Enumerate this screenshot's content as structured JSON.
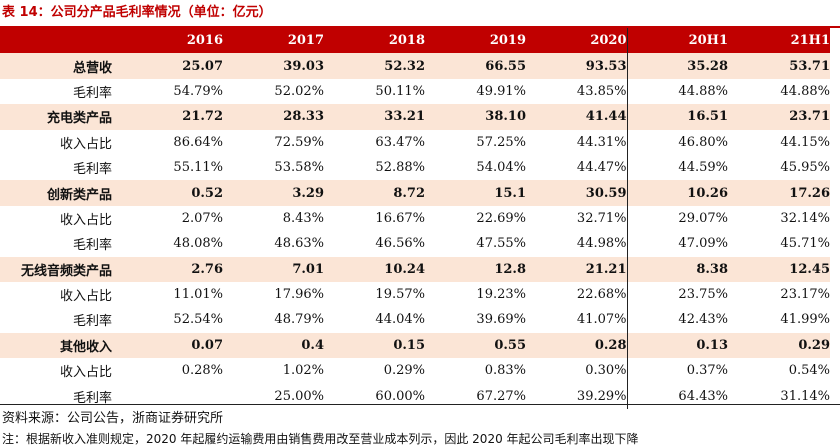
{
  "title": "表 14：公司分产品毛利率情况（单位：亿元）",
  "header": [
    "",
    "2016",
    "2017",
    "2018",
    "2019",
    "2020",
    "20H1",
    "21H1"
  ],
  "rows": [
    {
      "label": "总营收",
      "type": "main",
      "values": [
        "25.07",
        "39.03",
        "52.32",
        "66.55",
        "93.53",
        "35.28",
        "53.71"
      ]
    },
    {
      "label": "毛利率",
      "type": "sub",
      "values": [
        "54.79%",
        "52.02%",
        "50.11%",
        "49.91%",
        "43.85%",
        "44.88%",
        "44.88%"
      ]
    },
    {
      "label": "充电类产品",
      "type": "main",
      "values": [
        "21.72",
        "28.33",
        "33.21",
        "38.10",
        "41.44",
        "16.51",
        "23.71"
      ]
    },
    {
      "label": "收入占比",
      "type": "sub",
      "values": [
        "86.64%",
        "72.59%",
        "63.47%",
        "57.25%",
        "44.31%",
        "46.80%",
        "44.15%"
      ]
    },
    {
      "label": "毛利率",
      "type": "sub",
      "values": [
        "55.11%",
        "53.58%",
        "52.88%",
        "54.04%",
        "44.47%",
        "44.59%",
        "45.95%"
      ]
    },
    {
      "label": "创新类产品",
      "type": "main",
      "values": [
        "0.52",
        "3.29",
        "8.72",
        "15.1",
        "30.59",
        "10.26",
        "17.26"
      ]
    },
    {
      "label": "收入占比",
      "type": "sub",
      "values": [
        "2.07%",
        "8.43%",
        "16.67%",
        "22.69%",
        "32.71%",
        "29.07%",
        "32.14%"
      ]
    },
    {
      "label": "毛利率",
      "type": "sub",
      "values": [
        "48.08%",
        "48.63%",
        "46.56%",
        "47.55%",
        "44.98%",
        "47.09%",
        "45.71%"
      ]
    },
    {
      "label": "无线音频类产品",
      "type": "main",
      "values": [
        "2.76",
        "7.01",
        "10.24",
        "12.8",
        "21.21",
        "8.38",
        "12.45"
      ]
    },
    {
      "label": "收入占比",
      "type": "sub",
      "values": [
        "11.01%",
        "17.96%",
        "19.57%",
        "19.23%",
        "22.68%",
        "23.75%",
        "23.17%"
      ]
    },
    {
      "label": "毛利率",
      "type": "sub",
      "values": [
        "52.54%",
        "48.79%",
        "44.04%",
        "39.69%",
        "41.07%",
        "42.43%",
        "41.99%"
      ]
    },
    {
      "label": "其他收入",
      "type": "main",
      "values": [
        "0.07",
        "0.4",
        "0.15",
        "0.55",
        "0.28",
        "0.13",
        "0.29"
      ]
    },
    {
      "label": "收入占比",
      "type": "sub",
      "values": [
        "0.28%",
        "1.02%",
        "0.29%",
        "0.83%",
        "0.30%",
        "0.37%",
        "0.54%"
      ]
    },
    {
      "label": "毛利率",
      "type": "sub",
      "values": [
        "",
        "25.00%",
        "60.00%",
        "67.27%",
        "39.29%",
        "64.43%",
        "31.14%"
      ]
    }
  ],
  "source": "资料来源：公司公告，浙商证券研究所",
  "note": "注：根据新收入准则规定，2020 年起履约运输费用由销售费用改至营业成本列示，因此 2020 年起公司毛利率出现下降"
}
